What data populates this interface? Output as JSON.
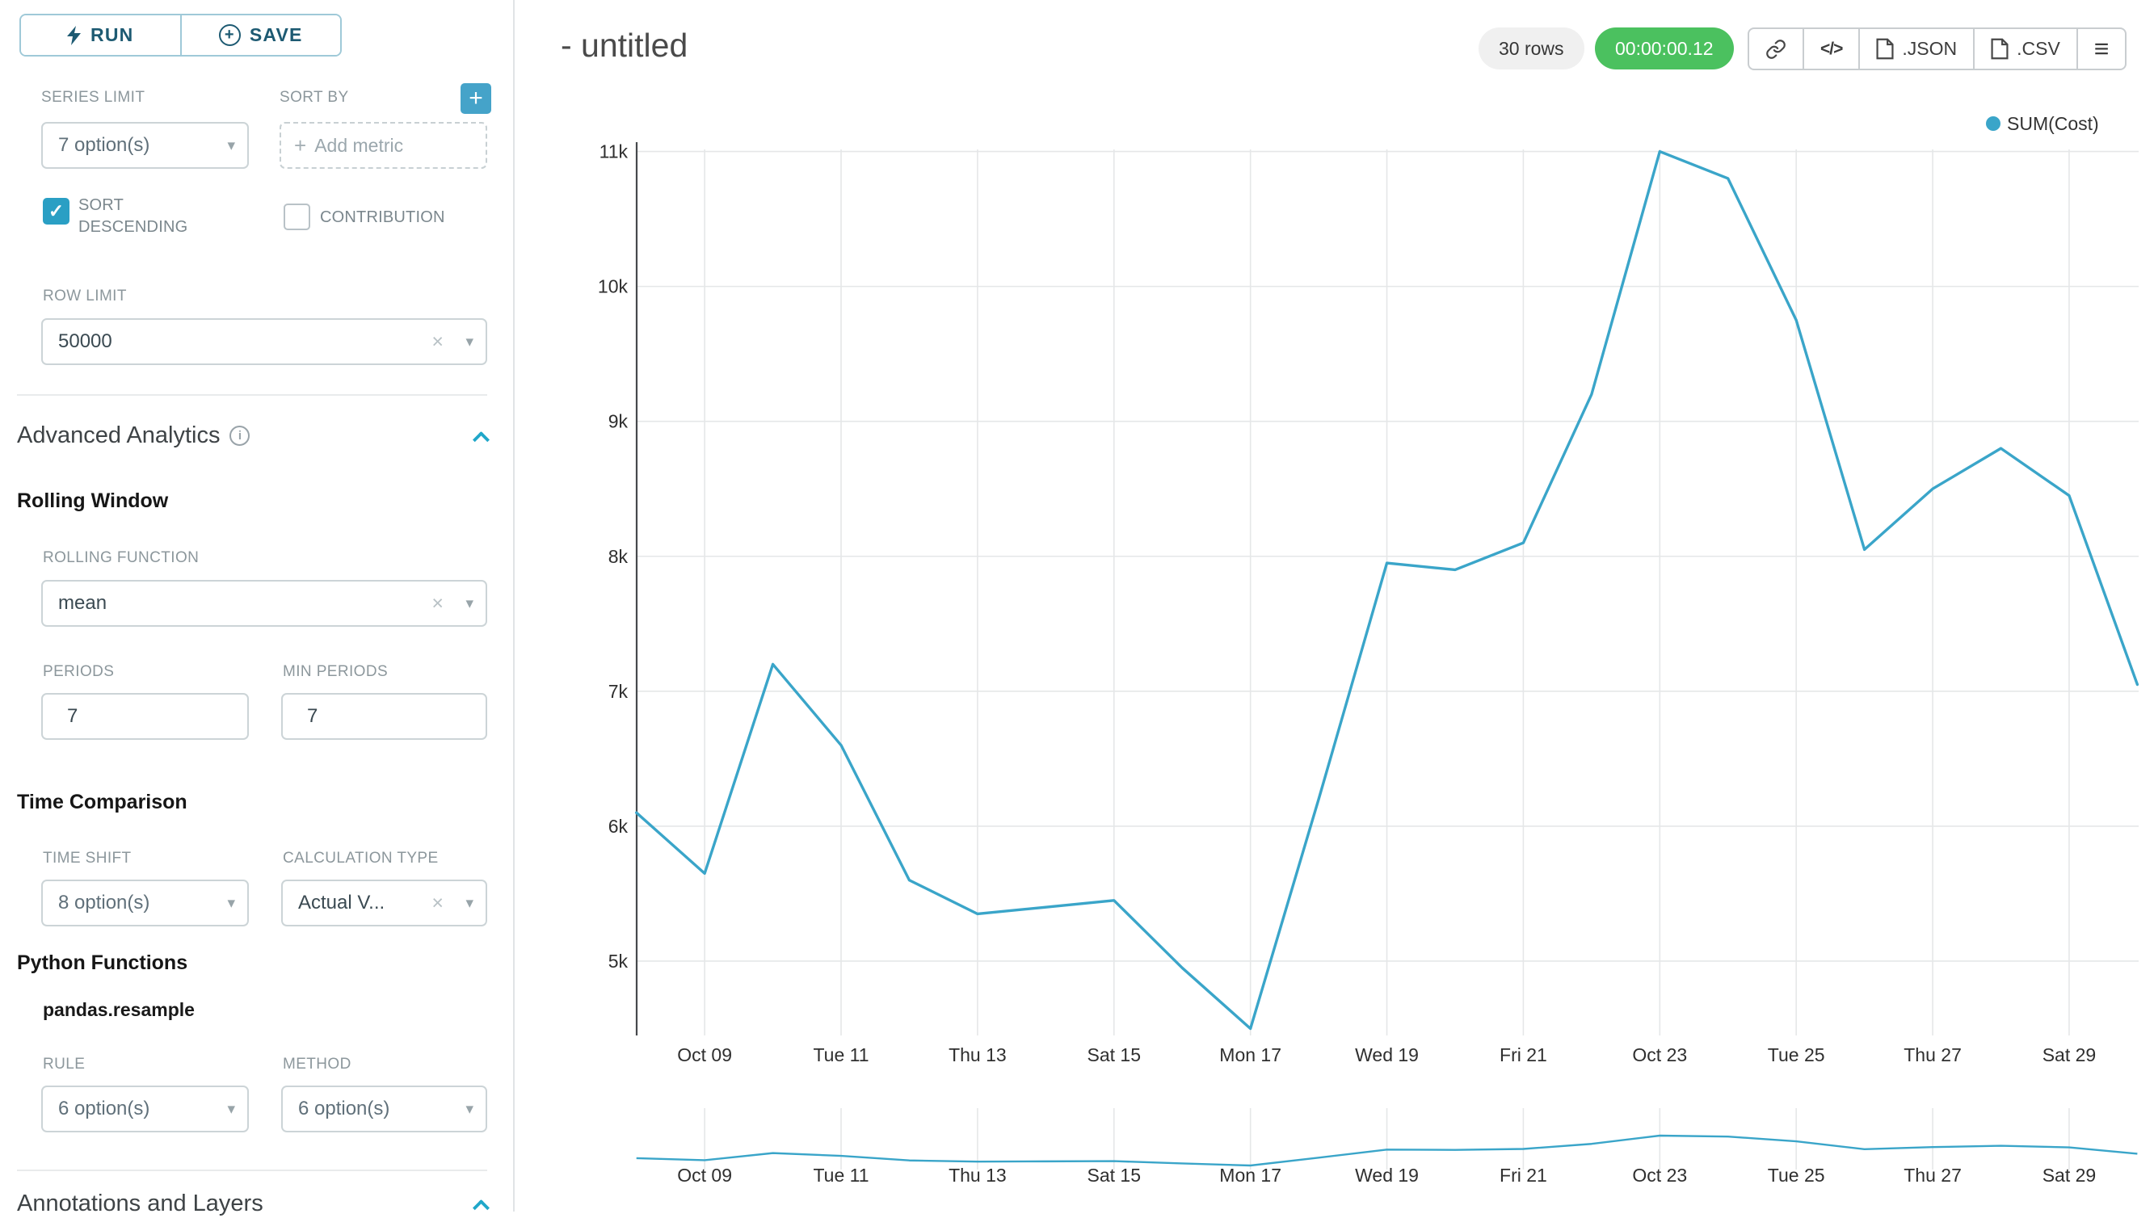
{
  "sidebar": {
    "run_label": "RUN",
    "save_label": "SAVE",
    "series_limit": {
      "label": "SERIES LIMIT",
      "value": "7 option(s)"
    },
    "sort_by": {
      "label": "SORT BY",
      "placeholder": "Add metric"
    },
    "sort_descending": {
      "label": "SORT DESCENDING",
      "checked": true
    },
    "contribution": {
      "label": "CONTRIBUTION",
      "checked": false
    },
    "row_limit": {
      "label": "ROW LIMIT",
      "value": "50000"
    },
    "advanced_analytics": {
      "title": "Advanced Analytics"
    },
    "rolling_window": {
      "title": "Rolling Window",
      "rolling_function": {
        "label": "ROLLING FUNCTION",
        "value": "mean"
      },
      "periods": {
        "label": "PERIODS",
        "value": "7"
      },
      "min_periods": {
        "label": "MIN PERIODS",
        "value": "7"
      }
    },
    "time_comparison": {
      "title": "Time Comparison",
      "time_shift": {
        "label": "TIME SHIFT",
        "value": "8 option(s)"
      },
      "calculation_type": {
        "label": "CALCULATION TYPE",
        "value": "Actual V..."
      }
    },
    "python_functions": {
      "title": "Python Functions",
      "subtitle": "pandas.resample",
      "rule": {
        "label": "RULE",
        "value": "6 option(s)"
      },
      "method": {
        "label": "METHOD",
        "value": "6 option(s)"
      }
    },
    "annotations": {
      "title": "Annotations and Layers"
    }
  },
  "header": {
    "title": "- untitled",
    "rows_badge": "30 rows",
    "timer_badge": "00:00:00.12",
    "buttons": {
      "json": ".JSON",
      "csv": ".CSV"
    }
  },
  "icons": {
    "plus": "+",
    "clear": "×",
    "caret_down": "▾",
    "check": "✓",
    "info": "i",
    "menu": "≡",
    "code": "</>",
    "run_icon_name": "lightning-bolt",
    "link_icon_name": "link",
    "file_icon_name": "document"
  },
  "colors": {
    "accent": "#20a7c9",
    "timer_green": "#4bc15f",
    "line": "#3aa5c9",
    "checkbox_checked": "#2a9fc4"
  },
  "chart_data": {
    "type": "line",
    "title": "",
    "legend": [
      "SUM(Cost)"
    ],
    "legend_position": "top-right",
    "grid": true,
    "x": [
      "Oct 08",
      "Oct 09",
      "Oct 10",
      "Oct 11",
      "Oct 12",
      "Oct 13",
      "Oct 14",
      "Oct 15",
      "Oct 16",
      "Oct 17",
      "Oct 18",
      "Oct 19",
      "Oct 20",
      "Oct 21",
      "Oct 22",
      "Oct 23",
      "Oct 24",
      "Oct 25",
      "Oct 26",
      "Oct 27",
      "Oct 28",
      "Oct 29",
      "Oct 30"
    ],
    "series": [
      {
        "name": "SUM(Cost)",
        "values": [
          6100,
          5650,
          7200,
          6600,
          5600,
          5350,
          5400,
          5450,
          4950,
          4500,
          6200,
          7950,
          7900,
          8100,
          9200,
          11000,
          10800,
          9750,
          8050,
          8500,
          8800,
          8450,
          7050
        ]
      }
    ],
    "x_tick_labels": [
      "Oct 09",
      "Tue 11",
      "Thu 13",
      "Sat 15",
      "Mon 17",
      "Wed 19",
      "Fri 21",
      "Oct 23",
      "Tue 25",
      "Thu 27",
      "Sat 29"
    ],
    "y_ticks": [
      5000,
      6000,
      7000,
      8000,
      9000,
      10000,
      11000
    ],
    "y_tick_labels": [
      "5k",
      "6k",
      "7k",
      "8k",
      "9k",
      "10k",
      "11k"
    ],
    "ylim": [
      4400,
      11200
    ],
    "line_color": "#3aa5c9",
    "has_mini_preview": true
  }
}
